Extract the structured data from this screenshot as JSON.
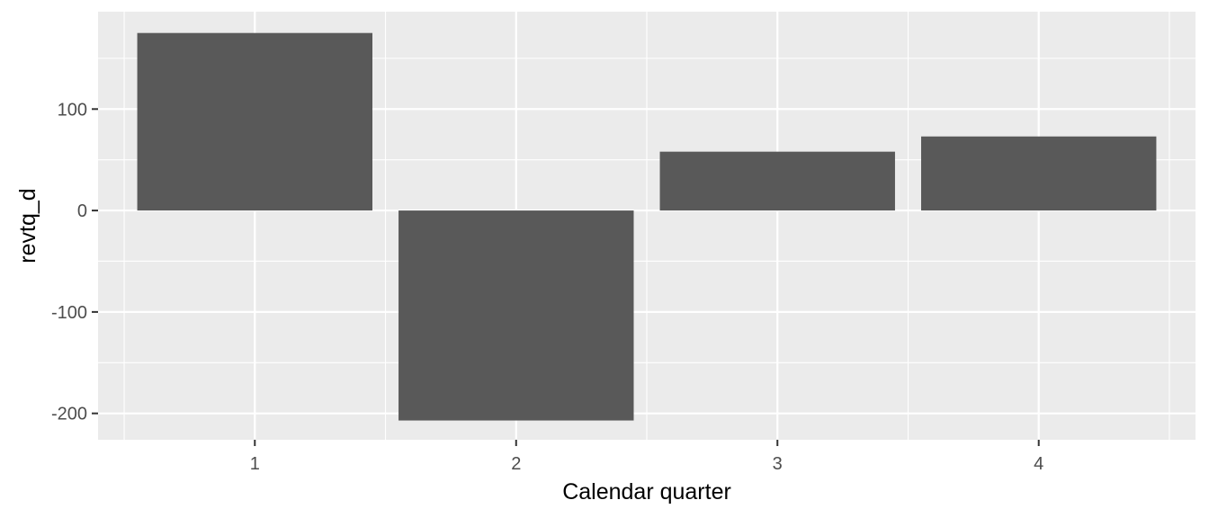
{
  "chart_data": {
    "type": "bar",
    "categories": [
      "1",
      "2",
      "3",
      "4"
    ],
    "values": [
      175,
      -207,
      58,
      73
    ],
    "xlabel": "Calendar quarter",
    "ylabel": "revtq_d",
    "ylim": [
      -226,
      196
    ],
    "yticks": [
      -200,
      -100,
      0,
      100
    ],
    "yticks_minor": [
      -150,
      -50,
      50,
      150
    ],
    "grid": true,
    "colors": {
      "panel": "#ebebeb",
      "grid": "#ffffff",
      "bar": "#595959",
      "tick": "#333333",
      "tick_label": "#4d4d4d"
    }
  }
}
